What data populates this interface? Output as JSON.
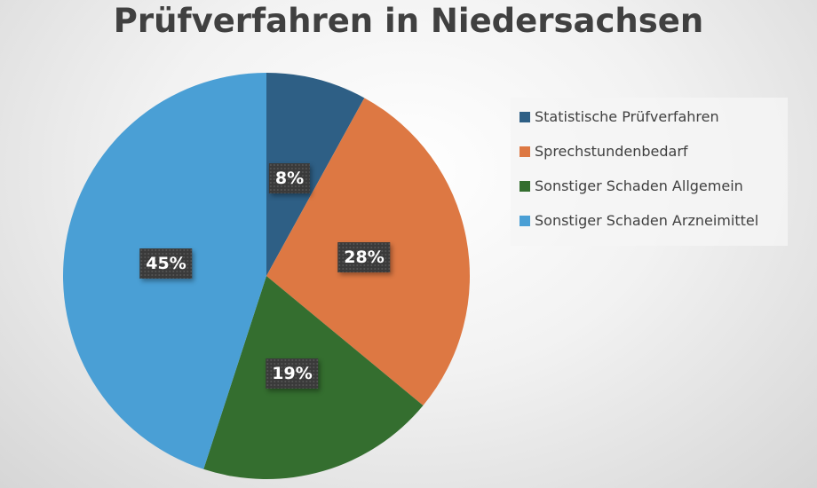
{
  "chart_data": {
    "type": "pie",
    "title": "Prüfverfahren in Niedersachsen",
    "categories": [
      "Statistische Prüfverfahren",
      "Sprechstundenbedarf",
      "Sonstiger Schaden Allgemein",
      "Sonstiger Schaden Arzneimittel"
    ],
    "values": [
      8,
      28,
      19,
      45
    ],
    "labels": [
      "8%",
      "28%",
      "19%",
      "45%"
    ],
    "colors": [
      "#2e5f85",
      "#dd7843",
      "#346e2f",
      "#4a9fd5"
    ],
    "legend": "right"
  }
}
